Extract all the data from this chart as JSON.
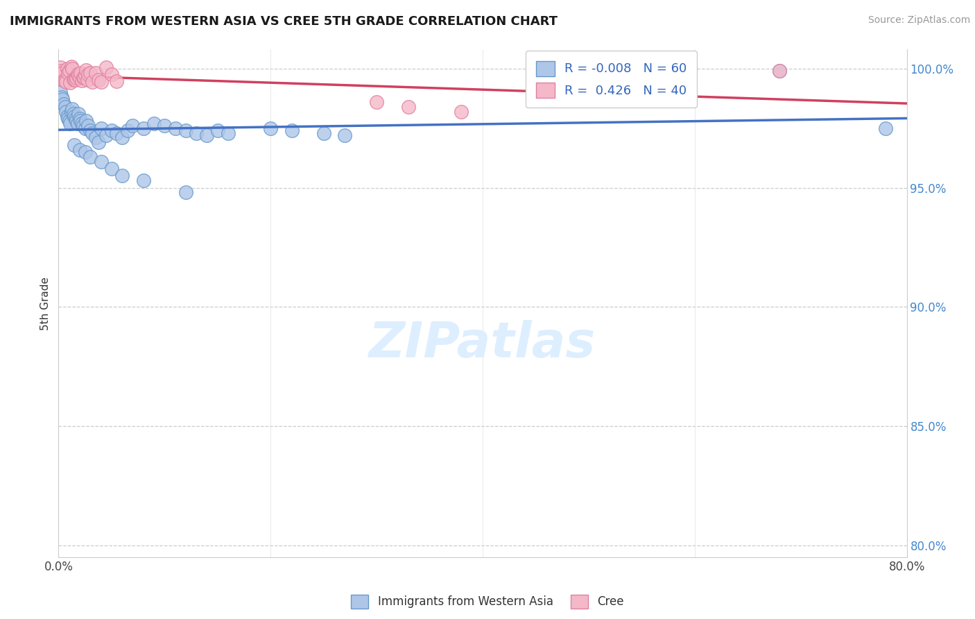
{
  "title": "IMMIGRANTS FROM WESTERN ASIA VS CREE 5TH GRADE CORRELATION CHART",
  "source": "Source: ZipAtlas.com",
  "ylabel": "5th Grade",
  "xlim": [
    0.0,
    0.8
  ],
  "ylim": [
    0.795,
    1.008
  ],
  "yticks": [
    0.8,
    0.85,
    0.9,
    0.95,
    1.0
  ],
  "ytick_labels": [
    "80.0%",
    "85.0%",
    "90.0%",
    "95.0%",
    "100.0%"
  ],
  "xticks": [
    0.0,
    0.2,
    0.4,
    0.6,
    0.8
  ],
  "xtick_labels": [
    "0.0%",
    "",
    "",
    "",
    "80.0%"
  ],
  "blue_color": "#aec6e8",
  "pink_color": "#f4b8c8",
  "blue_edge_color": "#6699cc",
  "pink_edge_color": "#e080a0",
  "blue_line_color": "#4472c4",
  "pink_line_color": "#d04060",
  "watermark_color": "#ddeeff"
}
